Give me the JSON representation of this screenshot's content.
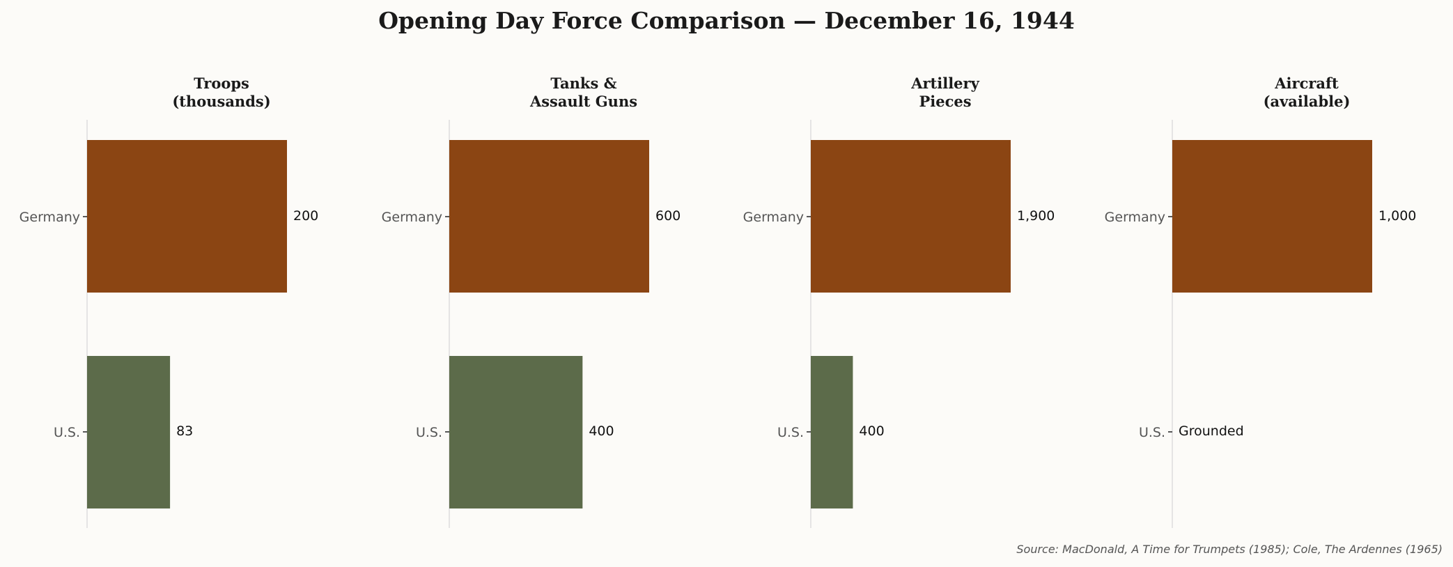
{
  "chart_data": {
    "type": "bar",
    "orientation": "horizontal",
    "title": "Opening Day Force Comparison — December 16, 1944",
    "source": "Source: MacDonald, A Time for Trumpets (1985); Cole, The Ardennes (1965)",
    "categories": [
      "Germany",
      "U.S."
    ],
    "colors": {
      "Germany": "#8b4513",
      "U.S.": "#5c6b4a",
      "background": "#fcfbf8"
    },
    "grid": false,
    "panels": [
      {
        "title": [
          "Troops",
          "(thousands)"
        ],
        "values": [
          200,
          83
        ],
        "labels": [
          "200",
          "83"
        ]
      },
      {
        "title": [
          "Tanks &",
          "Assault Guns"
        ],
        "values": [
          600,
          400
        ],
        "labels": [
          "600",
          "400"
        ]
      },
      {
        "title": [
          "Artillery",
          "Pieces"
        ],
        "values": [
          1900,
          400
        ],
        "labels": [
          "1,900",
          "400"
        ]
      },
      {
        "title": [
          "Aircraft",
          "(available)"
        ],
        "values": [
          1000,
          0
        ],
        "labels": [
          "1,000",
          "Grounded"
        ]
      }
    ]
  }
}
